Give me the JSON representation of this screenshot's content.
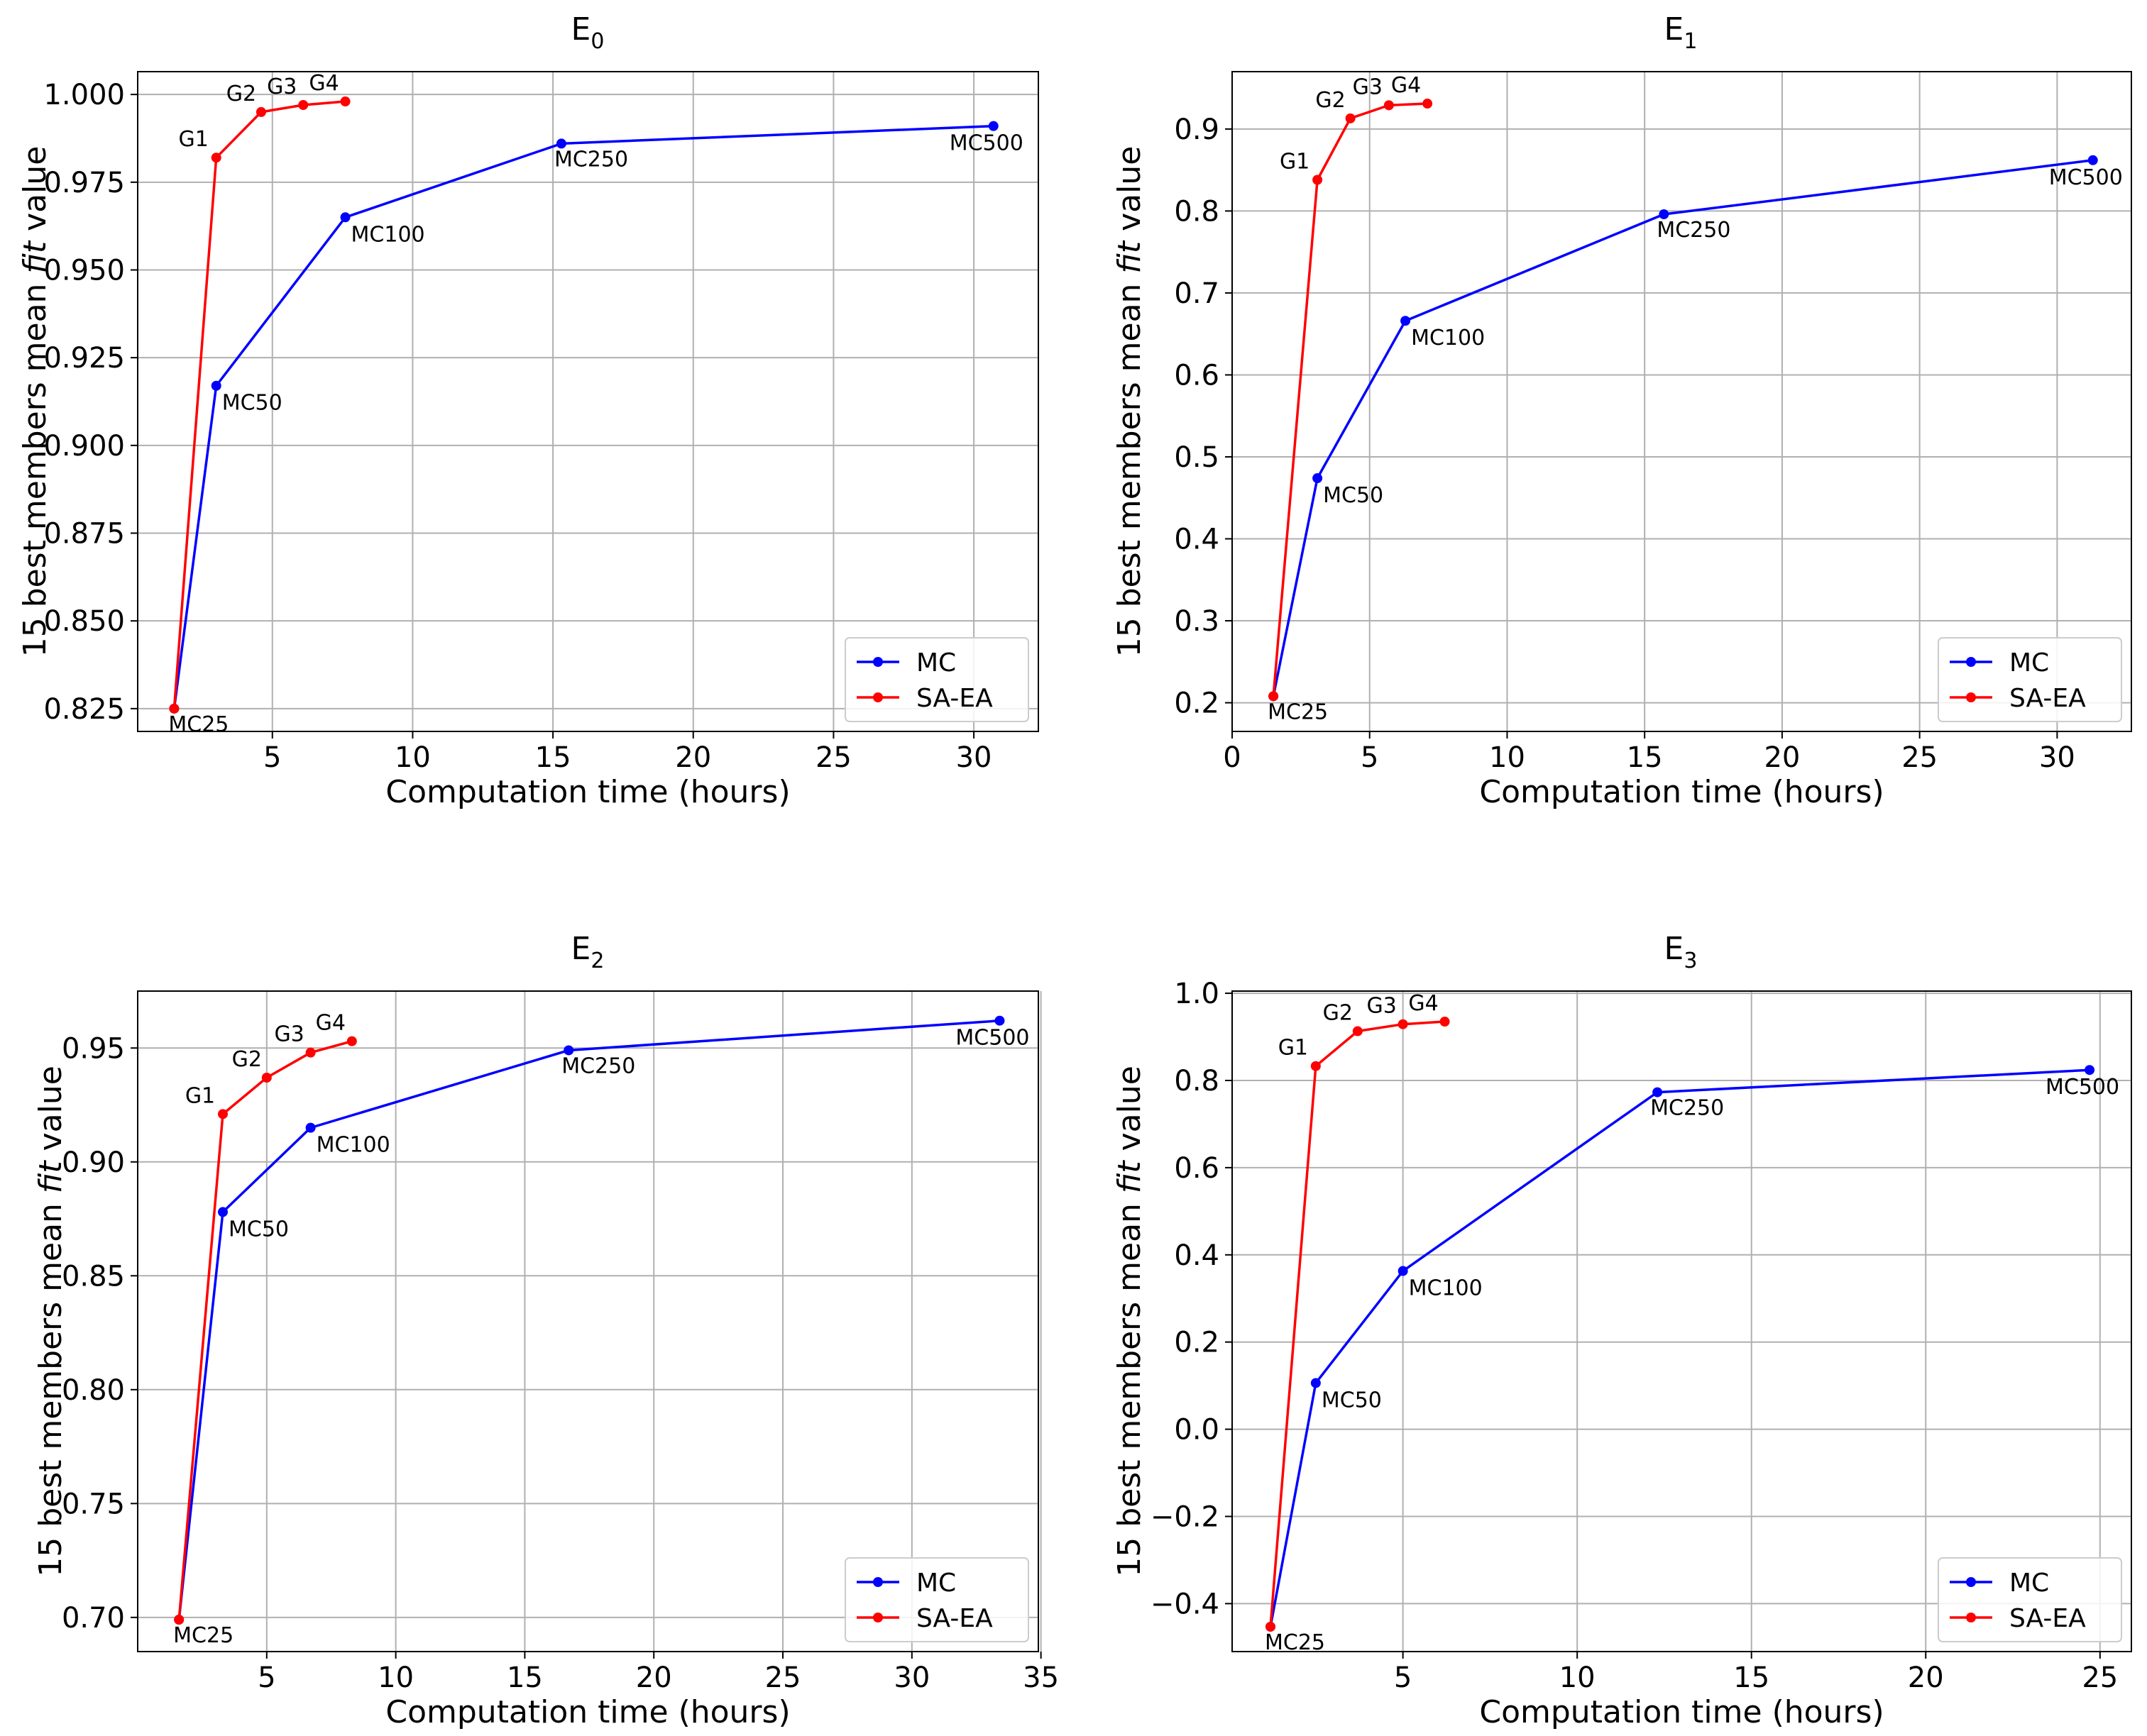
{
  "chart_data": [
    {
      "type": "line",
      "title": "E",
      "title_sub": "0",
      "xlabel": "Computation time (hours)",
      "ylabel_parts": [
        "15 best members mean ",
        "fit",
        " value"
      ],
      "xlim": [
        0.2,
        32.3
      ],
      "ylim": [
        0.8185,
        1.0065
      ],
      "xticks": [
        5,
        10,
        15,
        20,
        25,
        30
      ],
      "xtick_labels": [
        "5",
        "10",
        "15",
        "20",
        "25",
        "30"
      ],
      "yticks": [
        0.825,
        0.85,
        0.875,
        0.9,
        0.925,
        0.95,
        0.975,
        1.0
      ],
      "ytick_labels": [
        "0.825",
        "0.850",
        "0.875",
        "0.900",
        "0.925",
        "0.950",
        "0.975",
        "1.000"
      ],
      "grid": true,
      "legend_position": "lower right",
      "series": [
        {
          "name": "MC",
          "color": "#0000ff",
          "x": [
            1.5,
            3.0,
            7.6,
            15.3,
            30.7
          ],
          "y": [
            0.825,
            0.917,
            0.965,
            0.986,
            0.991
          ],
          "labels": [
            "MC25",
            "MC50",
            "MC100",
            "MC250",
            "MC500"
          ]
        },
        {
          "name": "SA-EA",
          "color": "#ff0000",
          "x": [
            1.5,
            3.0,
            4.6,
            6.1,
            7.6
          ],
          "y": [
            0.825,
            0.982,
            0.995,
            0.997,
            0.998
          ],
          "labels": [
            "",
            "G1",
            "G2",
            "G3",
            "G4"
          ]
        }
      ]
    },
    {
      "type": "line",
      "title": "E",
      "title_sub": "1",
      "xlabel": "Computation time (hours)",
      "ylabel_parts": [
        "15 best members mean ",
        "fit",
        " value"
      ],
      "xlim": [
        0.0,
        32.7
      ],
      "ylim": [
        0.165,
        0.97
      ],
      "xticks": [
        0,
        5,
        10,
        15,
        20,
        25,
        30
      ],
      "xtick_labels": [
        "0",
        "5",
        "10",
        "15",
        "20",
        "25",
        "30"
      ],
      "yticks": [
        0.2,
        0.3,
        0.4,
        0.5,
        0.6,
        0.7,
        0.8,
        0.9
      ],
      "ytick_labels": [
        "0.2",
        "0.3",
        "0.4",
        "0.5",
        "0.6",
        "0.7",
        "0.8",
        "0.9"
      ],
      "grid": true,
      "legend_position": "lower right",
      "series": [
        {
          "name": "MC",
          "color": "#0000ff",
          "x": [
            1.5,
            3.1,
            6.3,
            15.7,
            31.3
          ],
          "y": [
            0.208,
            0.474,
            0.666,
            0.796,
            0.862
          ],
          "labels": [
            "MC25",
            "MC50",
            "MC100",
            "MC250",
            "MC500"
          ]
        },
        {
          "name": "SA-EA",
          "color": "#ff0000",
          "x": [
            1.5,
            3.1,
            4.3,
            5.7,
            7.1
          ],
          "y": [
            0.208,
            0.838,
            0.913,
            0.929,
            0.931
          ],
          "labels": [
            "",
            "G1",
            "G2",
            "G3",
            "G4"
          ]
        }
      ]
    },
    {
      "type": "line",
      "title": "E",
      "title_sub": "2",
      "xlabel": "Computation time (hours)",
      "ylabel_parts": [
        "15 best members mean ",
        "fit",
        " value"
      ],
      "xlim": [
        0.0,
        34.9
      ],
      "ylim": [
        0.685,
        0.975
      ],
      "xticks": [
        5,
        10,
        15,
        20,
        25,
        30,
        35
      ],
      "xtick_labels": [
        "5",
        "10",
        "15",
        "20",
        "25",
        "30",
        "35"
      ],
      "yticks": [
        0.7,
        0.75,
        0.8,
        0.85,
        0.9,
        0.95
      ],
      "ytick_labels": [
        "0.70",
        "0.75",
        "0.80",
        "0.85",
        "0.90",
        "0.95"
      ],
      "grid": true,
      "legend_position": "lower right",
      "series": [
        {
          "name": "MC",
          "color": "#0000ff",
          "x": [
            1.6,
            3.3,
            6.7,
            16.7,
            33.4
          ],
          "y": [
            0.699,
            0.878,
            0.915,
            0.949,
            0.962
          ],
          "labels": [
            "MC25",
            "MC50",
            "MC100",
            "MC250",
            "MC500"
          ]
        },
        {
          "name": "SA-EA",
          "color": "#ff0000",
          "x": [
            1.6,
            3.3,
            5.0,
            6.7,
            8.3
          ],
          "y": [
            0.699,
            0.921,
            0.937,
            0.948,
            0.953
          ],
          "labels": [
            "",
            "G1",
            "G2",
            "G3",
            "G4"
          ]
        }
      ]
    },
    {
      "type": "line",
      "title": "E",
      "title_sub": "3",
      "xlabel": "Computation time (hours)",
      "ylabel_parts": [
        "15 best members mean ",
        "fit",
        " value"
      ],
      "xlim": [
        0.1,
        25.9
      ],
      "ylim": [
        -0.51,
        1.005
      ],
      "xticks": [
        5,
        10,
        15,
        20,
        25
      ],
      "xtick_labels": [
        "5",
        "10",
        "15",
        "20",
        "25"
      ],
      "yticks": [
        -0.4,
        -0.2,
        0.0,
        0.2,
        0.4,
        0.6,
        0.8,
        1.0
      ],
      "ytick_labels": [
        "−0.4",
        "−0.2",
        "0.0",
        "0.2",
        "0.4",
        "0.6",
        "0.8",
        "1.0"
      ],
      "grid": true,
      "legend_position": "lower right",
      "series": [
        {
          "name": "MC",
          "color": "#0000ff",
          "x": [
            1.2,
            2.5,
            5.0,
            12.3,
            24.7
          ],
          "y": [
            -0.453,
            0.106,
            0.363,
            0.773,
            0.824
          ],
          "labels": [
            "MC25",
            "MC50",
            "MC100",
            "MC250",
            "MC500"
          ]
        },
        {
          "name": "SA-EA",
          "color": "#ff0000",
          "x": [
            1.2,
            2.5,
            3.7,
            5.0,
            6.2
          ],
          "y": [
            -0.453,
            0.833,
            0.913,
            0.929,
            0.935
          ],
          "labels": [
            "",
            "G1",
            "G2",
            "G3",
            "G4"
          ]
        }
      ]
    }
  ]
}
